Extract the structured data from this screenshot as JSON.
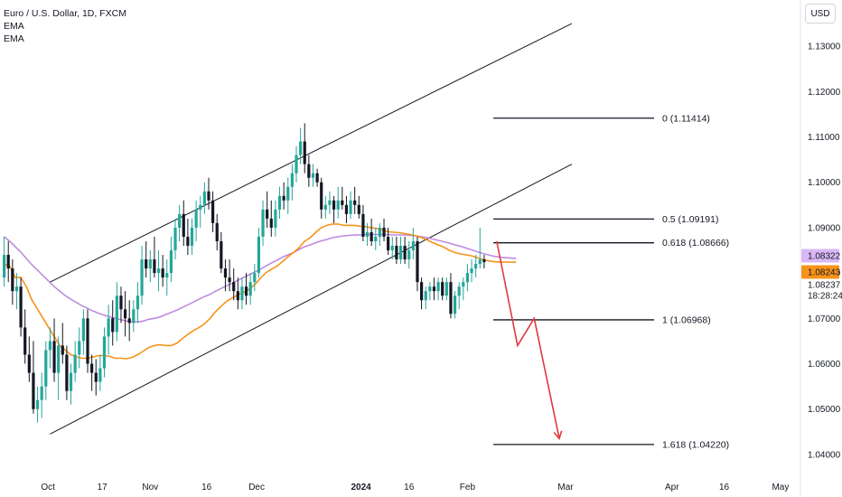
{
  "legend": {
    "title": "Euro / U.S. Dollar, 1D, FXCM",
    "ema1": "EMA",
    "ema2": "EMA"
  },
  "currency_button": "USD",
  "colors": {
    "up": "#26a69a",
    "down": "#131722",
    "ema_fast": "#f7931a",
    "ema_slow": "#c08ae0",
    "projection": "#e0393e",
    "channel": "#131722",
    "fib": "#131722",
    "label_ema_slow_bg": "#d9b8f5",
    "label_ema_fast_bg": "#f7931a"
  },
  "chart_data": {
    "type": "candlestick",
    "title": "Euro / U.S. Dollar, 1D, FXCM",
    "ylim": [
      1.036,
      1.137
    ],
    "y_ticks": [
      "1.13000",
      "1.12000",
      "1.11000",
      "1.10000",
      "1.09000",
      "1.08000",
      "1.07000",
      "1.06000",
      "1.05000",
      "1.04000"
    ],
    "x_ticks": [
      "Oct",
      "17",
      "Nov",
      "16",
      "Dec",
      "2024",
      "16",
      "Feb",
      "Mar",
      "Apr",
      "16",
      "May"
    ],
    "price_labels": [
      {
        "text": "1.08322",
        "value": 1.08322,
        "kind": "ema-slow"
      },
      {
        "text": "1.08243",
        "value": 1.08243,
        "kind": "ema-fast"
      },
      {
        "text": "1.08237",
        "value": 1.08237,
        "kind": "last"
      },
      {
        "text": "18:28:24",
        "value": 1.08237,
        "kind": "countdown"
      }
    ],
    "fib_levels": [
      {
        "label": "0 (1.11414)",
        "value": 1.11414
      },
      {
        "label": "0.5 (1.09191)",
        "value": 1.09191
      },
      {
        "label": "0.618 (1.08666)",
        "value": 1.08666
      },
      {
        "label": "1 (1.06968)",
        "value": 1.06968
      },
      {
        "label": "1.618 (1.04220)",
        "value": 1.0422
      }
    ],
    "candles": [
      [
        1.079,
        1.088,
        1.077,
        1.084
      ],
      [
        1.084,
        1.087,
        1.078,
        1.081
      ],
      [
        1.081,
        1.083,
        1.073,
        1.076
      ],
      [
        1.076,
        1.08,
        1.072,
        1.077
      ],
      [
        1.077,
        1.079,
        1.066,
        1.068
      ],
      [
        1.068,
        1.072,
        1.06,
        1.062
      ],
      [
        1.062,
        1.066,
        1.056,
        1.058
      ],
      [
        1.058,
        1.065,
        1.049,
        1.05
      ],
      [
        1.05,
        1.055,
        1.047,
        1.052
      ],
      [
        1.052,
        1.058,
        1.048,
        1.055
      ],
      [
        1.055,
        1.065,
        1.052,
        1.063
      ],
      [
        1.063,
        1.068,
        1.059,
        1.065
      ],
      [
        1.065,
        1.07,
        1.056,
        1.058
      ],
      [
        1.058,
        1.066,
        1.052,
        1.064
      ],
      [
        1.064,
        1.069,
        1.06,
        1.062
      ],
      [
        1.062,
        1.064,
        1.052,
        1.054
      ],
      [
        1.054,
        1.06,
        1.051,
        1.058
      ],
      [
        1.058,
        1.065,
        1.056,
        1.062
      ],
      [
        1.062,
        1.068,
        1.059,
        1.065
      ],
      [
        1.065,
        1.072,
        1.062,
        1.07
      ],
      [
        1.07,
        1.072,
        1.058,
        1.06
      ],
      [
        1.06,
        1.062,
        1.054,
        1.058
      ],
      [
        1.058,
        1.061,
        1.053,
        1.056
      ],
      [
        1.056,
        1.062,
        1.054,
        1.059
      ],
      [
        1.059,
        1.068,
        1.057,
        1.066
      ],
      [
        1.066,
        1.073,
        1.062,
        1.07
      ],
      [
        1.07,
        1.074,
        1.064,
        1.067
      ],
      [
        1.067,
        1.078,
        1.065,
        1.075
      ],
      [
        1.075,
        1.077,
        1.069,
        1.072
      ],
      [
        1.072,
        1.076,
        1.066,
        1.07
      ],
      [
        1.07,
        1.074,
        1.065,
        1.069
      ],
      [
        1.069,
        1.074,
        1.067,
        1.072
      ],
      [
        1.072,
        1.078,
        1.069,
        1.075
      ],
      [
        1.075,
        1.086,
        1.073,
        1.083
      ],
      [
        1.083,
        1.087,
        1.079,
        1.081
      ],
      [
        1.081,
        1.085,
        1.078,
        1.083
      ],
      [
        1.083,
        1.088,
        1.079,
        1.08
      ],
      [
        1.08,
        1.085,
        1.076,
        1.081
      ],
      [
        1.081,
        1.084,
        1.077,
        1.079
      ],
      [
        1.079,
        1.083,
        1.075,
        1.08
      ],
      [
        1.08,
        1.088,
        1.078,
        1.085
      ],
      [
        1.085,
        1.092,
        1.083,
        1.09
      ],
      [
        1.09,
        1.095,
        1.087,
        1.093
      ],
      [
        1.093,
        1.096,
        1.086,
        1.088
      ],
      [
        1.088,
        1.092,
        1.084,
        1.086
      ],
      [
        1.086,
        1.092,
        1.084,
        1.09
      ],
      [
        1.09,
        1.096,
        1.087,
        1.094
      ],
      [
        1.094,
        1.097,
        1.09,
        1.095
      ],
      [
        1.095,
        1.1,
        1.093,
        1.098
      ],
      [
        1.098,
        1.101,
        1.094,
        1.096
      ],
      [
        1.096,
        1.098,
        1.089,
        1.091
      ],
      [
        1.091,
        1.093,
        1.085,
        1.087
      ],
      [
        1.087,
        1.089,
        1.08,
        1.081
      ],
      [
        1.081,
        1.083,
        1.076,
        1.079
      ],
      [
        1.079,
        1.083,
        1.076,
        1.078
      ],
      [
        1.078,
        1.081,
        1.074,
        1.076
      ],
      [
        1.076,
        1.079,
        1.072,
        1.074
      ],
      [
        1.074,
        1.079,
        1.072,
        1.077
      ],
      [
        1.077,
        1.08,
        1.073,
        1.075
      ],
      [
        1.075,
        1.08,
        1.073,
        1.078
      ],
      [
        1.078,
        1.082,
        1.076,
        1.08
      ],
      [
        1.08,
        1.09,
        1.079,
        1.088
      ],
      [
        1.088,
        1.096,
        1.086,
        1.094
      ],
      [
        1.094,
        1.098,
        1.09,
        1.092
      ],
      [
        1.092,
        1.096,
        1.088,
        1.09
      ],
      [
        1.09,
        1.096,
        1.088,
        1.094
      ],
      [
        1.094,
        1.099,
        1.092,
        1.097
      ],
      [
        1.097,
        1.1,
        1.094,
        1.096
      ],
      [
        1.096,
        1.101,
        1.093,
        1.099
      ],
      [
        1.099,
        1.104,
        1.096,
        1.102
      ],
      [
        1.102,
        1.108,
        1.1,
        1.106
      ],
      [
        1.106,
        1.112,
        1.104,
        1.109
      ],
      [
        1.109,
        1.113,
        1.102,
        1.104
      ],
      [
        1.104,
        1.106,
        1.099,
        1.101
      ],
      [
        1.101,
        1.104,
        1.099,
        1.102
      ],
      [
        1.102,
        1.103,
        1.099,
        1.1
      ],
      [
        1.1,
        1.101,
        1.092,
        1.094
      ],
      [
        1.094,
        1.097,
        1.092,
        1.095
      ],
      [
        1.095,
        1.098,
        1.093,
        1.096
      ],
      [
        1.096,
        1.097,
        1.091,
        1.094
      ],
      [
        1.094,
        1.099,
        1.092,
        1.096
      ],
      [
        1.096,
        1.099,
        1.094,
        1.095
      ],
      [
        1.095,
        1.097,
        1.091,
        1.093
      ],
      [
        1.093,
        1.098,
        1.092,
        1.096
      ],
      [
        1.096,
        1.099,
        1.093,
        1.095
      ],
      [
        1.095,
        1.097,
        1.092,
        1.093
      ],
      [
        1.093,
        1.095,
        1.087,
        1.088
      ],
      [
        1.088,
        1.091,
        1.086,
        1.089
      ],
      [
        1.089,
        1.092,
        1.086,
        1.087
      ],
      [
        1.087,
        1.09,
        1.085,
        1.088
      ],
      [
        1.088,
        1.091,
        1.086,
        1.09
      ],
      [
        1.09,
        1.092,
        1.087,
        1.088
      ],
      [
        1.088,
        1.09,
        1.084,
        1.085
      ],
      [
        1.085,
        1.088,
        1.083,
        1.086
      ],
      [
        1.086,
        1.088,
        1.082,
        1.083
      ],
      [
        1.083,
        1.088,
        1.082,
        1.086
      ],
      [
        1.086,
        1.088,
        1.082,
        1.083
      ],
      [
        1.083,
        1.087,
        1.081,
        1.085
      ],
      [
        1.085,
        1.09,
        1.083,
        1.087
      ],
      [
        1.087,
        1.088,
        1.076,
        1.078
      ],
      [
        1.078,
        1.079,
        1.072,
        1.074
      ],
      [
        1.074,
        1.077,
        1.072,
        1.076
      ],
      [
        1.076,
        1.078,
        1.074,
        1.077
      ],
      [
        1.077,
        1.079,
        1.074,
        1.076
      ],
      [
        1.076,
        1.079,
        1.074,
        1.078
      ],
      [
        1.078,
        1.079,
        1.074,
        1.075
      ],
      [
        1.075,
        1.079,
        1.074,
        1.078
      ],
      [
        1.078,
        1.08,
        1.07,
        1.071
      ],
      [
        1.071,
        1.076,
        1.07,
        1.075
      ],
      [
        1.075,
        1.078,
        1.072,
        1.077
      ],
      [
        1.077,
        1.079,
        1.074,
        1.078
      ],
      [
        1.078,
        1.082,
        1.076,
        1.08
      ],
      [
        1.08,
        1.083,
        1.078,
        1.081
      ],
      [
        1.081,
        1.084,
        1.079,
        1.082
      ],
      [
        1.082,
        1.09,
        1.081,
        1.083
      ],
      [
        1.083,
        1.084,
        1.081,
        1.0824
      ]
    ],
    "ema_fast": [
      [
        1.082,
        1.0815,
        1.079
      ],
      [
        1.079,
        1.077,
        1.074
      ],
      [
        1.072,
        1.07,
        1.068
      ],
      [
        1.066,
        1.064,
        1.063
      ],
      [
        1.062,
        1.0615,
        1.0612
      ],
      [
        1.0612,
        1.0615,
        1.0618
      ],
      [
        1.0618,
        1.0616,
        1.0612
      ],
      [
        1.0612,
        1.0611,
        1.0614
      ],
      [
        1.062,
        1.0628,
        1.0636
      ],
      [
        1.064,
        1.0642,
        1.064
      ],
      [
        1.064,
        1.0645,
        1.0655
      ],
      [
        1.0665,
        1.0673,
        1.068
      ],
      [
        1.0688,
        1.07,
        1.0715
      ],
      [
        1.0727,
        1.0738,
        1.0745
      ],
      [
        1.0752,
        1.0757,
        1.0764
      ],
      [
        1.0774,
        1.0788,
        1.08
      ],
      [
        1.0808,
        1.0815,
        1.0825
      ],
      [
        1.0836,
        1.0845,
        1.0856
      ],
      [
        1.087,
        1.0878,
        1.089
      ],
      [
        1.09,
        1.0905,
        1.0908
      ],
      [
        1.0908,
        1.0905,
        1.0905
      ],
      [
        1.0905,
        1.0903,
        1.0902
      ],
      [
        1.09,
        1.0898,
        1.0895
      ],
      [
        1.0891,
        1.089,
        1.0889
      ],
      [
        1.0887,
        1.0885,
        1.0882
      ],
      [
        1.0878,
        1.0873,
        1.0867
      ],
      [
        1.0862,
        1.0857,
        1.085
      ],
      [
        1.0845,
        1.0842,
        1.084
      ],
      [
        1.0838,
        1.0834,
        1.083
      ],
      [
        1.0827,
        1.0825,
        1.0824
      ],
      [
        1.0824,
        1.0824,
        1.0824
      ]
    ],
    "ema_slow": [
      [
        1.088,
        1.087,
        1.0858
      ],
      [
        1.0846,
        1.0832,
        1.0818
      ],
      [
        1.0806,
        1.0794,
        1.0782
      ],
      [
        1.077,
        1.076,
        1.075
      ],
      [
        1.0742,
        1.0735,
        1.0728
      ],
      [
        1.0722,
        1.0716,
        1.0711
      ],
      [
        1.0707,
        1.0703,
        1.07
      ],
      [
        1.0697,
        1.0694,
        1.0692
      ],
      [
        1.0692,
        1.0694,
        1.0698
      ],
      [
        1.07,
        1.0703,
        1.0708
      ],
      [
        1.0713,
        1.0718,
        1.0724
      ],
      [
        1.073,
        1.0736,
        1.0742
      ],
      [
        1.0748,
        1.0753,
        1.076
      ],
      [
        1.0766,
        1.0772,
        1.0778
      ],
      [
        1.0784,
        1.079,
        1.0796
      ],
      [
        1.0802,
        1.0808,
        1.0815
      ],
      [
        1.0822,
        1.0828,
        1.0835
      ],
      [
        1.084,
        1.0845,
        1.0852
      ],
      [
        1.0858,
        1.0862,
        1.0867
      ],
      [
        1.0871,
        1.0874,
        1.0878
      ],
      [
        1.088,
        1.0882,
        1.0883
      ],
      [
        1.0884,
        1.0884,
        1.0885
      ],
      [
        1.0885,
        1.0885,
        1.0885
      ],
      [
        1.0885,
        1.0884,
        1.0884
      ],
      [
        1.0884,
        1.0883,
        1.0882
      ],
      [
        1.088,
        1.0878,
        1.0875
      ],
      [
        1.0872,
        1.0869,
        1.0866
      ],
      [
        1.0862,
        1.0859,
        1.0855
      ],
      [
        1.0851,
        1.0847,
        1.0843
      ],
      [
        1.084,
        1.0837,
        1.0835
      ],
      [
        1.0834,
        1.0833,
        1.0832
      ]
    ],
    "channel_lines": [
      {
        "name": "channel-upper",
        "from": {
          "bar": 11,
          "price": 1.078
        },
        "to": {
          "bar": 136,
          "price": 1.135
        }
      },
      {
        "name": "channel-lower",
        "from": {
          "bar": 11,
          "price": 1.0445
        },
        "to": {
          "bar": 136,
          "price": 1.104
        }
      }
    ],
    "projection_path": [
      {
        "bar": 118,
        "price": 1.087
      },
      {
        "bar": 123,
        "price": 1.064
      },
      {
        "bar": 127,
        "price": 1.07
      },
      {
        "bar": 133,
        "price": 1.0435
      }
    ]
  }
}
